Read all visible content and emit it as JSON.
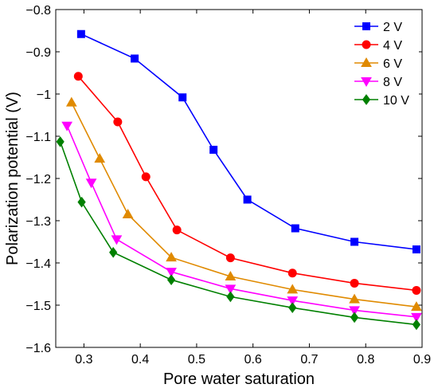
{
  "chart_data": {
    "type": "line",
    "title": "",
    "xlabel": "Pore water saturation",
    "ylabel": "Polarization potential (V)",
    "xlim": [
      0.25,
      0.9
    ],
    "ylim": [
      -1.6,
      -0.8
    ],
    "xticks": [
      0.3,
      0.4,
      0.5,
      0.6,
      0.7,
      0.8,
      0.9
    ],
    "yticks": [
      -1.6,
      -1.5,
      -1.4,
      -1.3,
      -1.2,
      -1.1,
      -1.0,
      -0.9,
      -0.8
    ],
    "xtick_labels": [
      "0.3",
      "0.4",
      "0.5",
      "0.6",
      "0.7",
      "0.8",
      "0.9"
    ],
    "ytick_labels": [
      "-1.6",
      "-1.5",
      "-1.4",
      "-1.3",
      "-1.2",
      "-1.1",
      "-1",
      "-0.9",
      "-0.8"
    ],
    "grid": false,
    "legend_position": "top-right",
    "series": [
      {
        "name": "2 V",
        "color": "#0000ff",
        "marker": "square",
        "x": [
          0.295,
          0.39,
          0.475,
          0.53,
          0.59,
          0.675,
          0.78,
          0.89
        ],
        "y": [
          -0.858,
          -0.916,
          -1.008,
          -1.132,
          -1.25,
          -1.318,
          -1.35,
          -1.368
        ]
      },
      {
        "name": "4 V",
        "color": "#ff0000",
        "marker": "circle",
        "x": [
          0.29,
          0.36,
          0.41,
          0.465,
          0.56,
          0.67,
          0.78,
          0.89
        ],
        "y": [
          -0.958,
          -1.066,
          -1.196,
          -1.322,
          -1.388,
          -1.424,
          -1.448,
          -1.465
        ]
      },
      {
        "name": "6 V",
        "color": "#e08a00",
        "marker": "triangle-up",
        "x": [
          0.278,
          0.328,
          0.378,
          0.455,
          0.56,
          0.67,
          0.78,
          0.89
        ],
        "y": [
          -1.02,
          -1.153,
          -1.285,
          -1.387,
          -1.432,
          -1.463,
          -1.486,
          -1.504
        ]
      },
      {
        "name": "8 V",
        "color": "#ff00ff",
        "marker": "triangle-down",
        "x": [
          0.27,
          0.313,
          0.358,
          0.455,
          0.56,
          0.67,
          0.78,
          0.89
        ],
        "y": [
          -1.075,
          -1.21,
          -1.344,
          -1.421,
          -1.461,
          -1.489,
          -1.512,
          -1.528
        ]
      },
      {
        "name": "10 V",
        "color": "#008000",
        "marker": "diamond",
        "x": [
          0.258,
          0.296,
          0.352,
          0.455,
          0.56,
          0.67,
          0.78,
          0.89
        ],
        "y": [
          -1.113,
          -1.256,
          -1.375,
          -1.44,
          -1.48,
          -1.506,
          -1.529,
          -1.546
        ]
      }
    ]
  }
}
